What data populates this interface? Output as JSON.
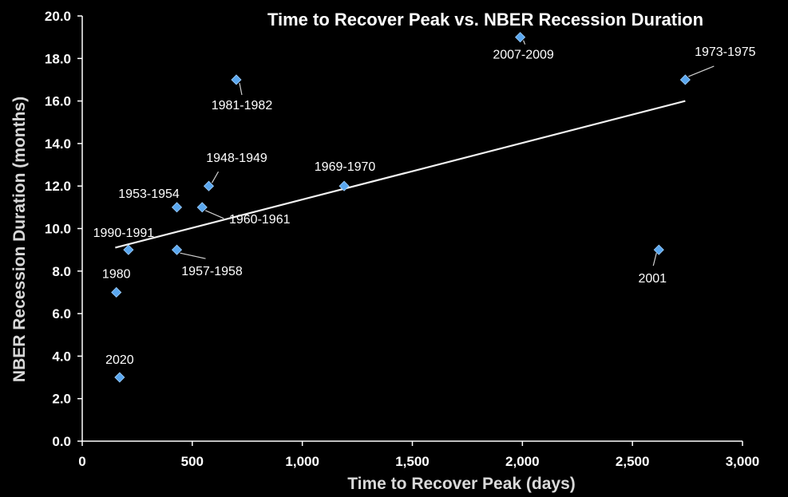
{
  "chart_data": {
    "type": "scatter",
    "title": "Time to Recover Peak vs. NBER Recession Duration",
    "xlabel": "Time to Recover Peak (days)",
    "ylabel": "NBER Recession Duration (months)",
    "xlim": [
      0,
      3000
    ],
    "ylim": [
      0,
      20
    ],
    "xticks": [
      0,
      500,
      1000,
      1500,
      2000,
      2500,
      3000
    ],
    "xtick_labels": [
      "0",
      "500",
      "1,000",
      "1,500",
      "2,000",
      "2,500",
      "3,000"
    ],
    "yticks": [
      0,
      2,
      4,
      6,
      8,
      10,
      12,
      14,
      16,
      18,
      20
    ],
    "ytick_labels": [
      "0.0",
      "2.0",
      "4.0",
      "6.0",
      "8.0",
      "10.0",
      "12.0",
      "14.0",
      "16.0",
      "18.0",
      "20.0"
    ],
    "grid": false,
    "legend": "none",
    "marker_color": "#5aa7ef",
    "trendline": {
      "x": [
        150,
        2740
      ],
      "y": [
        9.1,
        16.0
      ],
      "color": "#f2f2f2"
    },
    "points": [
      {
        "label": "2020",
        "x": 170,
        "y": 3
      },
      {
        "label": "1980",
        "x": 155,
        "y": 7
      },
      {
        "label": "1990-1991",
        "x": 210,
        "y": 9
      },
      {
        "label": "1957-1958",
        "x": 430,
        "y": 9
      },
      {
        "label": "1953-1954",
        "x": 430,
        "y": 11
      },
      {
        "label": "1960-1961",
        "x": 545,
        "y": 11
      },
      {
        "label": "1948-1949",
        "x": 575,
        "y": 12
      },
      {
        "label": "1981-1982",
        "x": 700,
        "y": 17
      },
      {
        "label": "1969-1970",
        "x": 1190,
        "y": 12
      },
      {
        "label": "2007-2009",
        "x": 1990,
        "y": 19
      },
      {
        "label": "2001",
        "x": 2620,
        "y": 9
      },
      {
        "label": "1973-1975",
        "x": 2740,
        "y": 17
      }
    ]
  }
}
